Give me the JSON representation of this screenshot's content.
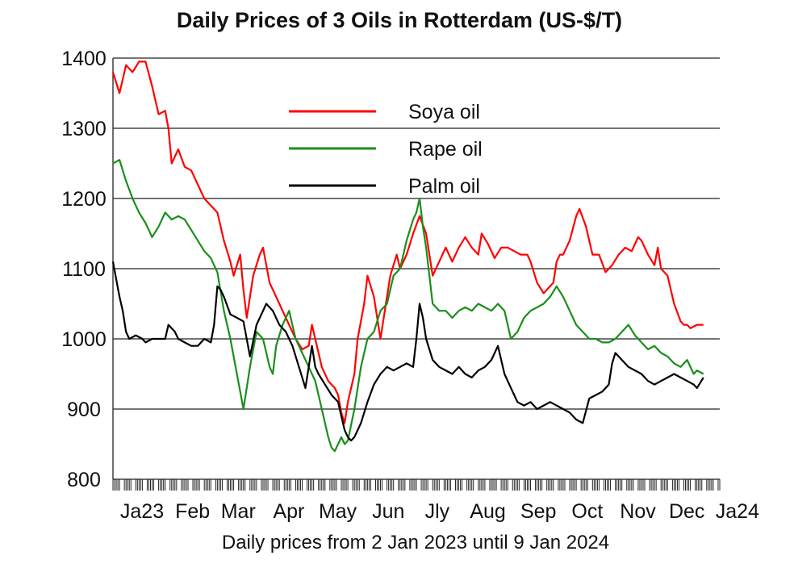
{
  "chart_data": {
    "type": "line",
    "title": "Daily Prices of 3 Oils in Rotterdam (US-$/T)",
    "xlabel": "Daily prices from 2 Jan 2023 until 9 Jan 2024",
    "ylabel": "",
    "ylim": [
      800,
      1400
    ],
    "yticks": [
      800,
      900,
      1000,
      1100,
      1200,
      1300,
      1400
    ],
    "xlim": [
      0,
      372
    ],
    "xticks": [
      {
        "day": 0,
        "label": "Ja23"
      },
      {
        "day": 31,
        "label": "Feb"
      },
      {
        "day": 59,
        "label": "Mar"
      },
      {
        "day": 90,
        "label": "Apr"
      },
      {
        "day": 120,
        "label": "May"
      },
      {
        "day": 151,
        "label": "Jun"
      },
      {
        "day": 181,
        "label": "Jly"
      },
      {
        "day": 212,
        "label": "Aug"
      },
      {
        "day": 243,
        "label": "Sep"
      },
      {
        "day": 273,
        "label": "Oct"
      },
      {
        "day": 304,
        "label": "Nov"
      },
      {
        "day": 334,
        "label": "Dec"
      },
      {
        "day": 365,
        "label": "Ja24"
      }
    ],
    "grid": "horizontal",
    "legend_position": "top-center",
    "series": [
      {
        "name": "Soya oil",
        "color": "#ff0000",
        "points": [
          [
            0,
            1380
          ],
          [
            4,
            1350
          ],
          [
            8,
            1390
          ],
          [
            12,
            1380
          ],
          [
            16,
            1395
          ],
          [
            20,
            1395
          ],
          [
            24,
            1360
          ],
          [
            28,
            1320
          ],
          [
            32,
            1325
          ],
          [
            34,
            1300
          ],
          [
            36,
            1250
          ],
          [
            40,
            1270
          ],
          [
            44,
            1245
          ],
          [
            48,
            1240
          ],
          [
            52,
            1220
          ],
          [
            56,
            1200
          ],
          [
            60,
            1190
          ],
          [
            64,
            1180
          ],
          [
            68,
            1140
          ],
          [
            72,
            1110
          ],
          [
            74,
            1090
          ],
          [
            78,
            1120
          ],
          [
            80,
            1070
          ],
          [
            82,
            1030
          ],
          [
            84,
            1060
          ],
          [
            86,
            1090
          ],
          [
            90,
            1120
          ],
          [
            92,
            1130
          ],
          [
            96,
            1080
          ],
          [
            100,
            1060
          ],
          [
            104,
            1040
          ],
          [
            108,
            1020
          ],
          [
            112,
            1000
          ],
          [
            116,
            985
          ],
          [
            120,
            990
          ],
          [
            122,
            1020
          ],
          [
            124,
            1000
          ],
          [
            128,
            960
          ],
          [
            132,
            940
          ],
          [
            136,
            930
          ],
          [
            138,
            920
          ],
          [
            140,
            895
          ],
          [
            142,
            880
          ],
          [
            144,
            910
          ],
          [
            148,
            950
          ],
          [
            150,
            1000
          ],
          [
            154,
            1050
          ],
          [
            156,
            1090
          ],
          [
            160,
            1060
          ],
          [
            164,
            1000
          ],
          [
            168,
            1060
          ],
          [
            170,
            1090
          ],
          [
            174,
            1120
          ],
          [
            176,
            1100
          ],
          [
            180,
            1120
          ],
          [
            184,
            1150
          ],
          [
            188,
            1175
          ],
          [
            192,
            1150
          ],
          [
            196,
            1090
          ],
          [
            200,
            1110
          ],
          [
            204,
            1130
          ],
          [
            208,
            1110
          ],
          [
            212,
            1130
          ],
          [
            216,
            1145
          ],
          [
            220,
            1130
          ],
          [
            224,
            1120
          ],
          [
            226,
            1150
          ],
          [
            230,
            1135
          ],
          [
            234,
            1115
          ],
          [
            238,
            1130
          ],
          [
            242,
            1130
          ],
          [
            246,
            1125
          ],
          [
            250,
            1120
          ],
          [
            254,
            1120
          ],
          [
            256,
            1110
          ],
          [
            260,
            1080
          ],
          [
            264,
            1065
          ],
          [
            266,
            1070
          ],
          [
            270,
            1080
          ],
          [
            272,
            1110
          ],
          [
            274,
            1120
          ],
          [
            276,
            1120
          ],
          [
            280,
            1140
          ],
          [
            284,
            1175
          ],
          [
            286,
            1185
          ],
          [
            290,
            1160
          ],
          [
            294,
            1120
          ],
          [
            298,
            1120
          ],
          [
            302,
            1095
          ],
          [
            306,
            1105
          ],
          [
            310,
            1120
          ],
          [
            314,
            1130
          ],
          [
            318,
            1125
          ],
          [
            322,
            1145
          ],
          [
            324,
            1140
          ],
          [
            328,
            1120
          ],
          [
            332,
            1105
          ],
          [
            334,
            1130
          ],
          [
            336,
            1100
          ],
          [
            340,
            1090
          ],
          [
            344,
            1050
          ],
          [
            348,
            1025
          ],
          [
            350,
            1020
          ],
          [
            352,
            1020
          ],
          [
            354,
            1015
          ],
          [
            358,
            1020
          ],
          [
            362,
            1020
          ]
        ]
      },
      {
        "name": "Rape oil",
        "color": "#1a8f1a",
        "points": [
          [
            0,
            1250
          ],
          [
            4,
            1255
          ],
          [
            8,
            1225
          ],
          [
            12,
            1200
          ],
          [
            16,
            1180
          ],
          [
            20,
            1165
          ],
          [
            24,
            1145
          ],
          [
            28,
            1160
          ],
          [
            32,
            1180
          ],
          [
            36,
            1170
          ],
          [
            40,
            1175
          ],
          [
            44,
            1170
          ],
          [
            48,
            1155
          ],
          [
            52,
            1140
          ],
          [
            56,
            1125
          ],
          [
            60,
            1115
          ],
          [
            64,
            1095
          ],
          [
            68,
            1040
          ],
          [
            72,
            1000
          ],
          [
            76,
            950
          ],
          [
            80,
            900
          ],
          [
            84,
            960
          ],
          [
            88,
            1010
          ],
          [
            92,
            1000
          ],
          [
            96,
            960
          ],
          [
            98,
            950
          ],
          [
            100,
            990
          ],
          [
            104,
            1020
          ],
          [
            108,
            1040
          ],
          [
            112,
            1000
          ],
          [
            116,
            980
          ],
          [
            120,
            960
          ],
          [
            124,
            940
          ],
          [
            128,
            900
          ],
          [
            130,
            880
          ],
          [
            132,
            860
          ],
          [
            134,
            845
          ],
          [
            136,
            840
          ],
          [
            138,
            850
          ],
          [
            140,
            860
          ],
          [
            142,
            850
          ],
          [
            144,
            855
          ],
          [
            148,
            900
          ],
          [
            152,
            960
          ],
          [
            156,
            1000
          ],
          [
            160,
            1010
          ],
          [
            164,
            1040
          ],
          [
            168,
            1050
          ],
          [
            172,
            1090
          ],
          [
            176,
            1100
          ],
          [
            180,
            1140
          ],
          [
            184,
            1170
          ],
          [
            186,
            1180
          ],
          [
            188,
            1200
          ],
          [
            190,
            1160
          ],
          [
            192,
            1130
          ],
          [
            196,
            1050
          ],
          [
            200,
            1040
          ],
          [
            204,
            1040
          ],
          [
            208,
            1030
          ],
          [
            212,
            1040
          ],
          [
            216,
            1045
          ],
          [
            220,
            1040
          ],
          [
            224,
            1050
          ],
          [
            228,
            1045
          ],
          [
            232,
            1040
          ],
          [
            236,
            1050
          ],
          [
            240,
            1040
          ],
          [
            244,
            1000
          ],
          [
            248,
            1010
          ],
          [
            252,
            1030
          ],
          [
            256,
            1040
          ],
          [
            260,
            1045
          ],
          [
            264,
            1050
          ],
          [
            268,
            1060
          ],
          [
            272,
            1075
          ],
          [
            276,
            1060
          ],
          [
            280,
            1040
          ],
          [
            284,
            1020
          ],
          [
            288,
            1010
          ],
          [
            292,
            1000
          ],
          [
            296,
            1000
          ],
          [
            300,
            995
          ],
          [
            304,
            995
          ],
          [
            308,
            1000
          ],
          [
            312,
            1010
          ],
          [
            316,
            1020
          ],
          [
            320,
            1005
          ],
          [
            324,
            995
          ],
          [
            328,
            985
          ],
          [
            332,
            990
          ],
          [
            336,
            980
          ],
          [
            340,
            975
          ],
          [
            344,
            965
          ],
          [
            348,
            960
          ],
          [
            352,
            970
          ],
          [
            356,
            950
          ],
          [
            358,
            955
          ],
          [
            362,
            950
          ]
        ]
      },
      {
        "name": "Palm oil",
        "color": "#000000",
        "points": [
          [
            0,
            1110
          ],
          [
            2,
            1085
          ],
          [
            4,
            1060
          ],
          [
            6,
            1040
          ],
          [
            8,
            1010
          ],
          [
            10,
            1000
          ],
          [
            14,
            1005
          ],
          [
            18,
            1000
          ],
          [
            20,
            995
          ],
          [
            24,
            1000
          ],
          [
            28,
            1000
          ],
          [
            32,
            1000
          ],
          [
            34,
            1020
          ],
          [
            38,
            1010
          ],
          [
            40,
            1000
          ],
          [
            44,
            995
          ],
          [
            48,
            990
          ],
          [
            52,
            990
          ],
          [
            56,
            1000
          ],
          [
            60,
            995
          ],
          [
            62,
            1020
          ],
          [
            64,
            1075
          ],
          [
            66,
            1070
          ],
          [
            68,
            1060
          ],
          [
            72,
            1035
          ],
          [
            76,
            1030
          ],
          [
            80,
            1025
          ],
          [
            84,
            975
          ],
          [
            88,
            1020
          ],
          [
            92,
            1040
          ],
          [
            94,
            1050
          ],
          [
            98,
            1040
          ],
          [
            102,
            1020
          ],
          [
            106,
            1010
          ],
          [
            108,
            1000
          ],
          [
            110,
            990
          ],
          [
            114,
            960
          ],
          [
            118,
            930
          ],
          [
            120,
            960
          ],
          [
            122,
            990
          ],
          [
            124,
            960
          ],
          [
            126,
            950
          ],
          [
            130,
            935
          ],
          [
            134,
            920
          ],
          [
            138,
            910
          ],
          [
            140,
            890
          ],
          [
            142,
            870
          ],
          [
            144,
            860
          ],
          [
            146,
            855
          ],
          [
            148,
            860
          ],
          [
            152,
            880
          ],
          [
            156,
            910
          ],
          [
            160,
            935
          ],
          [
            164,
            950
          ],
          [
            168,
            960
          ],
          [
            172,
            955
          ],
          [
            176,
            960
          ],
          [
            180,
            965
          ],
          [
            184,
            960
          ],
          [
            186,
            1000
          ],
          [
            188,
            1050
          ],
          [
            190,
            1030
          ],
          [
            192,
            1000
          ],
          [
            196,
            970
          ],
          [
            200,
            960
          ],
          [
            204,
            955
          ],
          [
            208,
            950
          ],
          [
            212,
            960
          ],
          [
            216,
            950
          ],
          [
            220,
            945
          ],
          [
            224,
            955
          ],
          [
            228,
            960
          ],
          [
            232,
            970
          ],
          [
            236,
            990
          ],
          [
            240,
            950
          ],
          [
            244,
            930
          ],
          [
            248,
            910
          ],
          [
            252,
            905
          ],
          [
            256,
            910
          ],
          [
            260,
            900
          ],
          [
            264,
            905
          ],
          [
            268,
            910
          ],
          [
            272,
            905
          ],
          [
            276,
            900
          ],
          [
            280,
            895
          ],
          [
            284,
            885
          ],
          [
            288,
            880
          ],
          [
            292,
            915
          ],
          [
            296,
            920
          ],
          [
            300,
            925
          ],
          [
            304,
            935
          ],
          [
            306,
            965
          ],
          [
            308,
            980
          ],
          [
            312,
            970
          ],
          [
            316,
            960
          ],
          [
            320,
            955
          ],
          [
            324,
            950
          ],
          [
            328,
            940
          ],
          [
            332,
            935
          ],
          [
            336,
            940
          ],
          [
            340,
            945
          ],
          [
            344,
            950
          ],
          [
            348,
            945
          ],
          [
            352,
            940
          ],
          [
            356,
            935
          ],
          [
            358,
            930
          ],
          [
            362,
            945
          ]
        ]
      }
    ]
  }
}
